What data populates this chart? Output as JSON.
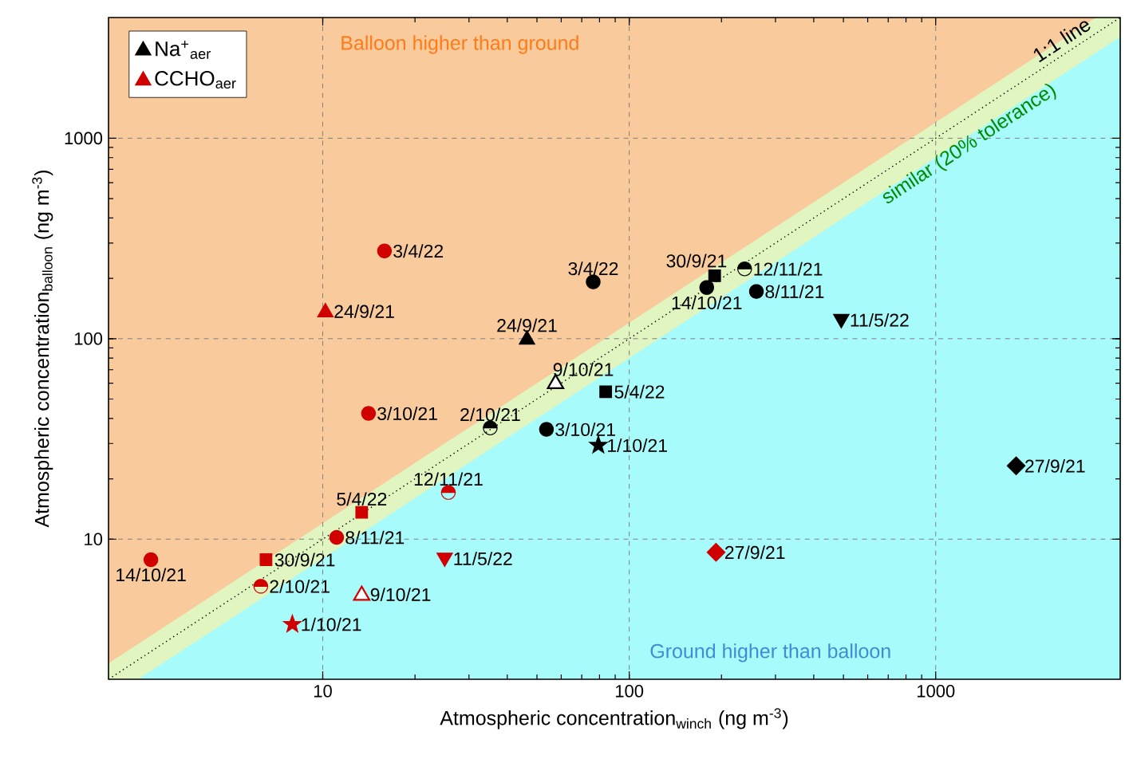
{
  "chart_data": {
    "type": "scatter",
    "xlabel": "Atmospheric concentration$_{winch}$ (ng m$^{-3}$)",
    "ylabel": "Atmospheric concentration$_{balloon}$ (ng m$^{-3}$)",
    "annotations": [
      "Balloon higher than ground",
      "Ground higher than balloon",
      "1:1 line",
      "similar (20% tolerance)"
    ],
    "log": "xy",
    "grid": true,
    "legend": "top left",
    "xlim": [
      2,
      4000
    ],
    "ylim": [
      2,
      4000
    ],
    "xticks": [
      10,
      100,
      1000
    ],
    "yticks": [
      10,
      100,
      1000
    ],
    "series": [
      {
        "type": "area",
        "color": "#e0f5c0",
        "x": [
          2,
          3333.33,
          4000
        ],
        "values": [
          2.4,
          4000,
          4000
        ]
      },
      {
        "type": "area",
        "color": "#a8fbfb",
        "x": [
          2.5,
          4000
        ],
        "values": [
          2,
          3200
        ]
      },
      {
        "type": "line",
        "color": "#000000",
        "line_style": "dotted",
        "x": [
          2,
          4000
        ],
        "values": [
          2,
          4000
        ]
      },
      {
        "name": "Na$^{+}$$_{aer}$",
        "color": "#000000",
        "marker": "triangle",
        "x": [
          46.4
        ],
        "values": [
          100
        ],
        "value_labels": [
          "24/9/21"
        ]
      },
      {
        "color": "#000000",
        "marker": "diamond",
        "x": [
          1830
        ],
        "values": [
          23.2
        ],
        "value_labels": [
          "27/9/21"
        ]
      },
      {
        "color": "#000000",
        "marker": "square",
        "x": [
          190
        ],
        "values": [
          206
        ],
        "value_labels": [
          "30/9/21"
        ]
      },
      {
        "color": "#000000",
        "marker": "star",
        "x": [
          79.3
        ],
        "values": [
          29.4
        ],
        "value_labels": [
          "1/10/21"
        ]
      },
      {
        "color": "#000000",
        "marker": "circle-half-top",
        "x": [
          35.2
        ],
        "values": [
          35.9
        ],
        "value_labels": [
          "2/10/21"
        ]
      },
      {
        "color": "#000000",
        "marker": "circle",
        "x": [
          53.7
        ],
        "values": [
          35.3
        ],
        "value_labels": [
          "3/10/21"
        ]
      },
      {
        "color": "#000000",
        "marker": "triangle-open",
        "x": [
          57.5
        ],
        "values": [
          60.3
        ],
        "value_labels": [
          "9/10/21"
        ]
      },
      {
        "color": "#000000",
        "marker": "circle",
        "x": [
          179
        ],
        "values": [
          180
        ],
        "value_labels": [
          "14/10/21"
        ]
      },
      {
        "color": "#000000",
        "marker": "circle",
        "x": [
          260
        ],
        "values": [
          172
        ],
        "value_labels": [
          "8/11/21"
        ]
      },
      {
        "color": "#000000",
        "marker": "circle-half-top",
        "x": [
          238
        ],
        "values": [
          223
        ],
        "value_labels": [
          "12/11/21"
        ]
      },
      {
        "color": "#000000",
        "marker": "circle",
        "x": [
          76.3
        ],
        "values": [
          192
        ],
        "value_labels": [
          "3/4/22"
        ]
      },
      {
        "color": "#000000",
        "marker": "square",
        "x": [
          83.8
        ],
        "values": [
          54.4
        ],
        "value_labels": [
          "5/4/22"
        ]
      },
      {
        "color": "#000000",
        "marker": "triangle-down",
        "x": [
          492
        ],
        "values": [
          124
        ],
        "value_labels": [
          "11/5/22"
        ]
      },
      {
        "name": "CCHO$_{aer}$",
        "color": "#d00000",
        "marker": "triangle",
        "x": [
          10.2
        ],
        "values": [
          137
        ],
        "value_labels": [
          "24/9/21"
        ]
      },
      {
        "color": "#d00000",
        "marker": "diamond",
        "x": [
          192
        ],
        "values": [
          8.6
        ],
        "value_labels": [
          "27/9/21"
        ]
      },
      {
        "color": "#d00000",
        "marker": "square",
        "x": [
          6.53
        ],
        "values": [
          7.9
        ],
        "value_labels": [
          "30/9/21"
        ]
      },
      {
        "color": "#d00000",
        "marker": "star",
        "x": [
          7.96
        ],
        "values": [
          3.76
        ],
        "value_labels": [
          "1/10/21"
        ]
      },
      {
        "color": "#d00000",
        "marker": "circle-half-top",
        "x": [
          6.28
        ],
        "values": [
          5.82
        ],
        "value_labels": [
          "2/10/21"
        ]
      },
      {
        "color": "#d00000",
        "marker": "circle",
        "x": [
          14.1
        ],
        "values": [
          42.4
        ],
        "value_labels": [
          "3/10/21"
        ]
      },
      {
        "color": "#d00000",
        "marker": "triangle-open",
        "x": [
          13.4
        ],
        "values": [
          5.3
        ],
        "value_labels": [
          "9/10/21"
        ]
      },
      {
        "color": "#d00000",
        "marker": "circle",
        "x": [
          2.75
        ],
        "values": [
          7.9
        ],
        "value_labels": [
          "14/10/21"
        ]
      },
      {
        "color": "#d00000",
        "marker": "circle",
        "x": [
          11.1
        ],
        "values": [
          10.2
        ],
        "value_labels": [
          "8/11/21"
        ]
      },
      {
        "color": "#d00000",
        "marker": "circle-half-top",
        "x": [
          25.7
        ],
        "values": [
          17.1
        ],
        "value_labels": [
          "12/11/21"
        ]
      },
      {
        "color": "#d00000",
        "marker": "circle",
        "x": [
          15.9
        ],
        "values": [
          274
        ],
        "value_labels": [
          "3/4/22"
        ]
      },
      {
        "color": "#d00000",
        "marker": "square",
        "x": [
          13.4
        ],
        "values": [
          13.6
        ],
        "value_labels": [
          "5/4/22"
        ]
      },
      {
        "color": "#d00000",
        "marker": "triangle-down",
        "x": [
          25.0
        ],
        "values": [
          8.0
        ],
        "value_labels": [
          "11/5/22"
        ]
      }
    ]
  }
}
